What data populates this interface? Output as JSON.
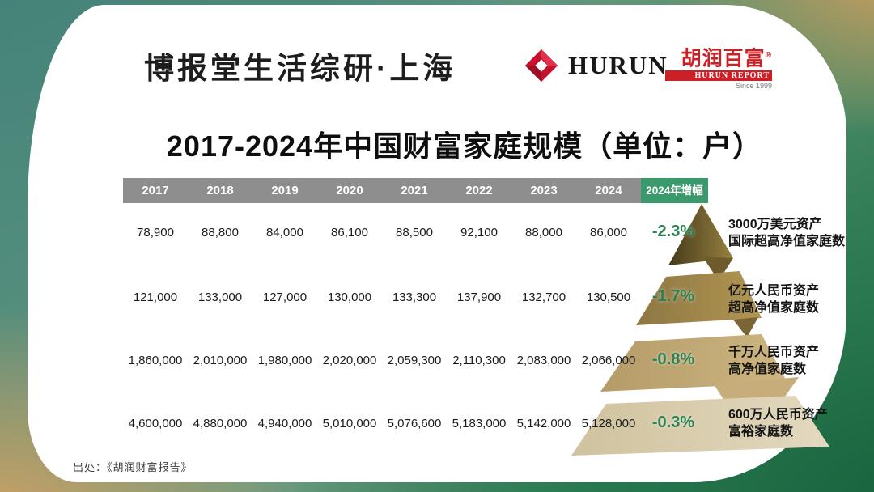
{
  "header": {
    "brand": "博报堂生活综研·上海",
    "hurun_logo_text": "HURUN",
    "hurun_report": {
      "cn": "胡润百富",
      "reg": "®",
      "band": "HURUN REPORT",
      "since": "Since 1999"
    }
  },
  "title": "2017-2024年中国财富家庭规模（单位：户）",
  "source": "出处：《胡润财富报告》",
  "chart_data": {
    "type": "table",
    "title": "2017-2024年中国财富家庭规模（单位：户）",
    "unit": "户",
    "columns": [
      "2017",
      "2018",
      "2019",
      "2020",
      "2021",
      "2022",
      "2023",
      "2024"
    ],
    "growth_column": "2024年增幅",
    "rows": [
      {
        "label_line1": "3000万美元资产",
        "label_line2": "国际超高净值家庭数",
        "values": [
          "78,900",
          "88,800",
          "84,000",
          "86,100",
          "88,500",
          "92,100",
          "88,000",
          "86,000"
        ],
        "growth": "-2.3%"
      },
      {
        "label_line1": "亿元人民币资产",
        "label_line2": "超高净值家庭数",
        "values": [
          "121,000",
          "133,000",
          "127,000",
          "130,000",
          "133,300",
          "137,900",
          "132,700",
          "130,500"
        ],
        "growth": "-1.7%"
      },
      {
        "label_line1": "千万人民币资产",
        "label_line2": "高净值家庭数",
        "values": [
          "1,860,000",
          "2,010,000",
          "1,980,000",
          "2,020,000",
          "2,059,300",
          "2,110,300",
          "2,083,000",
          "2,066,000"
        ],
        "growth": "-0.8%"
      },
      {
        "label_line1": "600万人民币资产",
        "label_line2": "富裕家庭数",
        "values": [
          "4,600,000",
          "4,880,000",
          "4,940,000",
          "5,010,000",
          "5,076,600",
          "5,183,000",
          "5,142,000",
          "5,128,000"
        ],
        "growth": "-0.3%"
      }
    ],
    "legend_position": "right",
    "grid": false
  },
  "colors": {
    "growth_text": "#2d8052",
    "header_gray": "#8e8e8e",
    "header_green": "#3a9a6c",
    "brand_red": "#c8102e",
    "report_red": "#cc2027",
    "pyramid_tiers": [
      "#6e5b2b",
      "#a28a4c",
      "#c0a672",
      "#d9cda9"
    ]
  }
}
